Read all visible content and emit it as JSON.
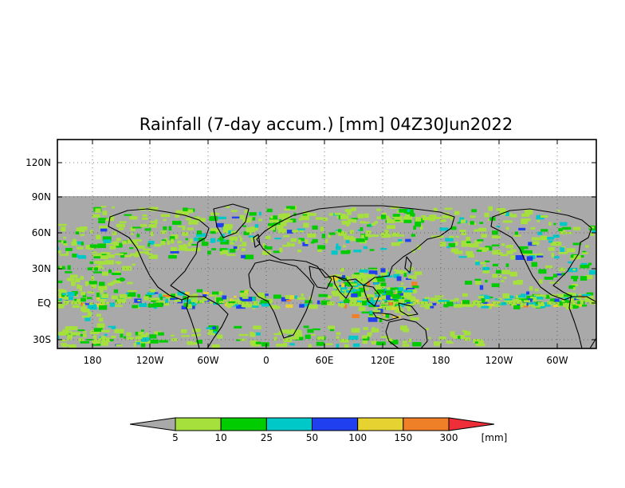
{
  "title": "Rainfall (7-day accum.) [mm] 04Z30Jun2022",
  "map": {
    "lat_labels": [
      "120N",
      "90N",
      "60N",
      "30N",
      "EQ",
      "30S"
    ],
    "lon_labels": [
      "180",
      "120W",
      "60W",
      "0",
      "60E",
      "120E",
      "180",
      "120W",
      "60W"
    ],
    "no_data_color": "#a9a9a9",
    "border_color": "#000000"
  },
  "colorbar": {
    "unit": "[mm]",
    "bins": [
      {
        "color": "#a9a9a9"
      },
      {
        "color": "#a6e03c"
      },
      {
        "color": "#00cc00"
      },
      {
        "color": "#00c8c8"
      },
      {
        "color": "#2040f0"
      },
      {
        "color": "#e6d230"
      },
      {
        "color": "#f08028"
      },
      {
        "color": "#ee2e38"
      }
    ],
    "thresholds": [
      "5",
      "10",
      "25",
      "50",
      "100",
      "150",
      "300"
    ]
  }
}
